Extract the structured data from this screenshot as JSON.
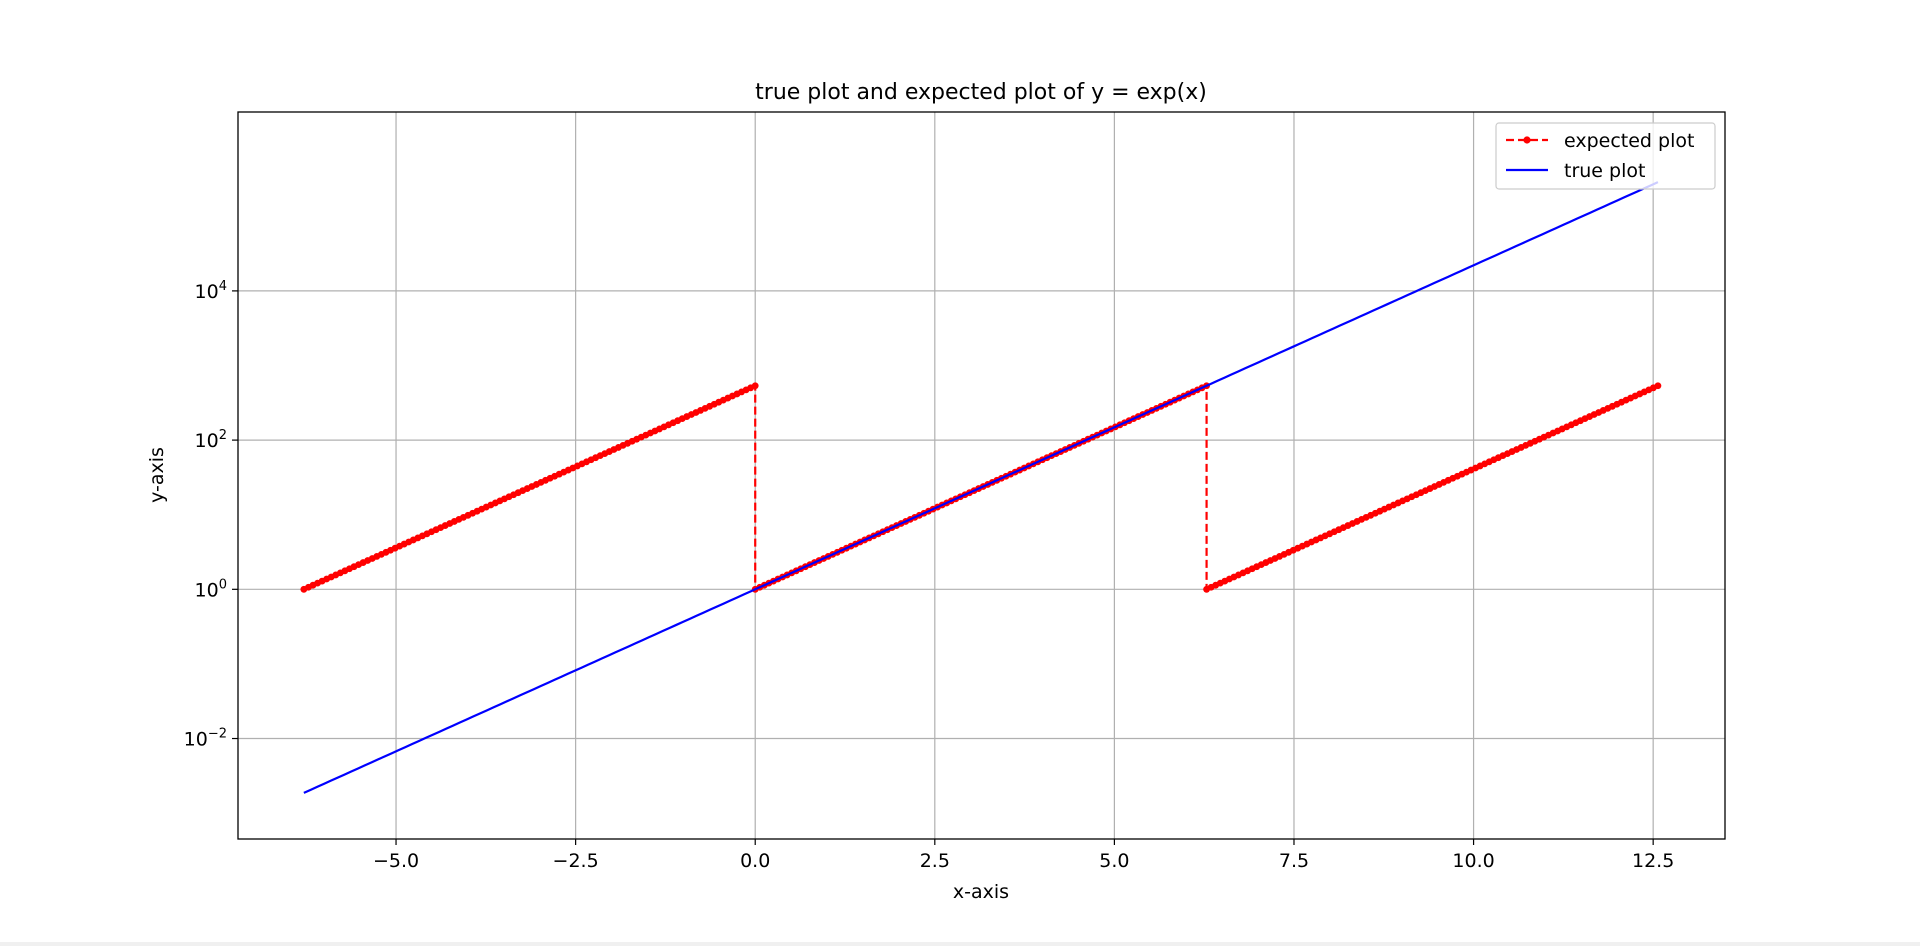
{
  "chart_data": {
    "type": "line",
    "title": "true plot and expected plot of y = exp(x)",
    "xlabel": "x-axis",
    "ylabel": "y-axis",
    "xlim": [
      -7.2,
      13.5
    ],
    "ylim": [
      0.00045,
      2500000
    ],
    "yscale": "log",
    "grid": true,
    "legend_position": "top-right",
    "x_ticks": [
      {
        "value": -5.0,
        "label": "−5.0"
      },
      {
        "value": -2.5,
        "label": "−2.5"
      },
      {
        "value": 0.0,
        "label": "0.0"
      },
      {
        "value": 2.5,
        "label": "2.5"
      },
      {
        "value": 5.0,
        "label": "5.0"
      },
      {
        "value": 7.5,
        "label": "7.5"
      },
      {
        "value": 10.0,
        "label": "10.0"
      },
      {
        "value": 12.5,
        "label": "12.5"
      }
    ],
    "y_ticks": [
      {
        "value": 0.01,
        "base": "10",
        "exp": "−2"
      },
      {
        "value": 1,
        "base": "10",
        "exp": "0"
      },
      {
        "value": 100,
        "base": "10",
        "exp": "2"
      },
      {
        "value": 10000,
        "base": "10",
        "exp": "4"
      }
    ],
    "series": [
      {
        "name": "expected plot",
        "color": "#ff0000",
        "style": "dashed",
        "marker": "dot",
        "segments": [
          {
            "x_start": -6.2832,
            "x_end": 0.0,
            "y_formula": "exp(x + 2*pi)"
          },
          {
            "x_start": 0.0,
            "x_end": 6.2832,
            "y_formula": "exp(x)"
          },
          {
            "x_start": 6.2832,
            "x_end": 12.5664,
            "y_formula": "exp(x - 2*pi)"
          }
        ],
        "points_per_segment": 100
      },
      {
        "name": "true plot",
        "color": "#0000ff",
        "style": "solid",
        "x_start": -6.2832,
        "x_end": 12.5664,
        "y_formula": "exp(x)"
      }
    ]
  }
}
